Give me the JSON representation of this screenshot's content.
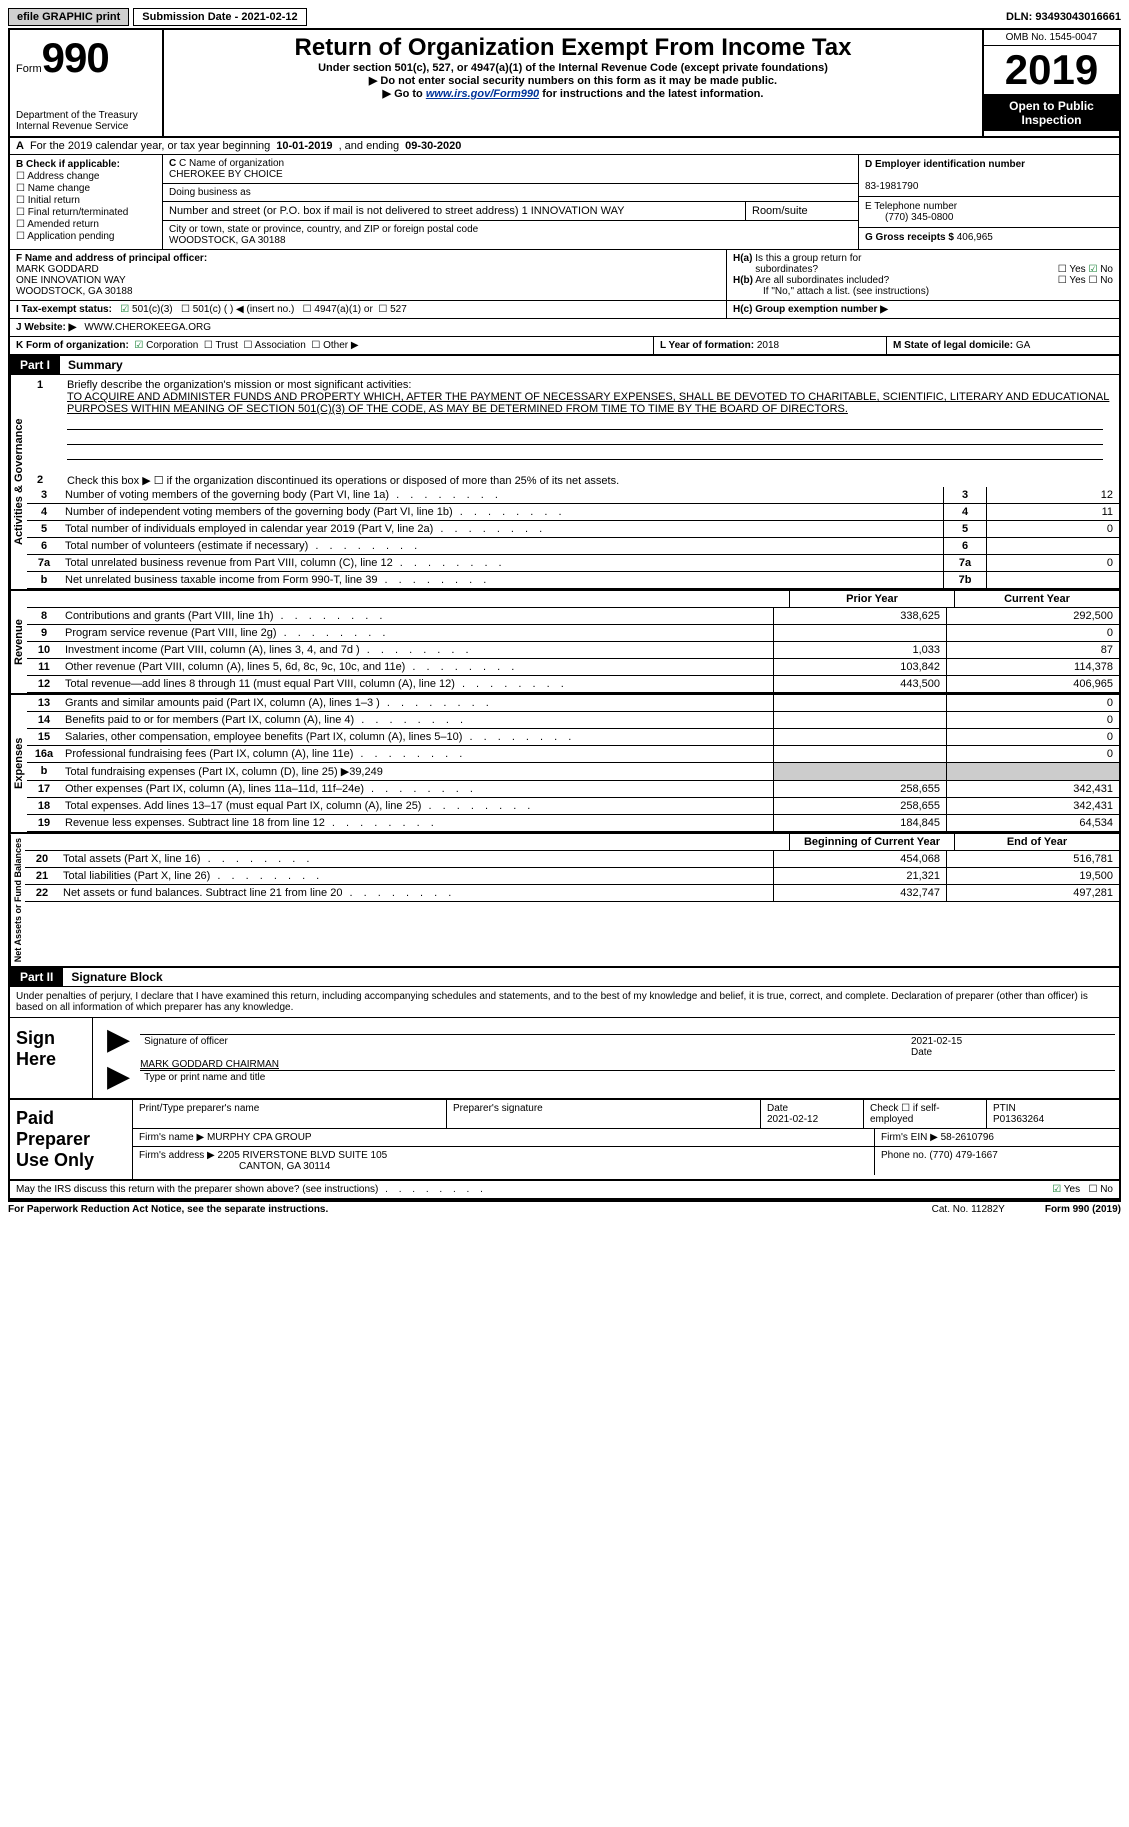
{
  "topbar": {
    "efile": "efile GRAPHIC print",
    "submission_label": "Submission Date - ",
    "submission_date": "2021-02-12",
    "dln_label": "DLN: ",
    "dln": "93493043016661"
  },
  "header": {
    "form_word": "Form",
    "form_no": "990",
    "dept": "Department of the Treasury",
    "irs": "Internal Revenue Service",
    "title": "Return of Organization Exempt From Income Tax",
    "subtitle": "Under section 501(c), 527, or 4947(a)(1) of the Internal Revenue Code (except private foundations)",
    "note1": "▶ Do not enter social security numbers on this form as it may be made public.",
    "note2_pre": "▶ Go to ",
    "note2_link": "www.irs.gov/Form990",
    "note2_post": " for instructions and the latest information.",
    "omb": "OMB No. 1545-0047",
    "year": "2019",
    "open": "Open to Public Inspection"
  },
  "lineA": {
    "a_label": "A",
    "text1": "For the 2019 calendar year, or tax year beginning ",
    "begin": "10-01-2019",
    "text2": " , and ending ",
    "end": "09-30-2020"
  },
  "colB": {
    "title": "B Check if applicable:",
    "opts": [
      "Address change",
      "Name change",
      "Initial return",
      "Final return/terminated",
      "Amended return",
      "Application pending"
    ]
  },
  "colC": {
    "name_lbl": "C Name of organization",
    "name": "CHEROKEE BY CHOICE",
    "dba_lbl": "Doing business as",
    "addr_lbl": "Number and street (or P.O. box if mail is not delivered to street address)",
    "room_lbl": "Room/suite",
    "addr": "1 INNOVATION WAY",
    "city_lbl": "City or town, state or province, country, and ZIP or foreign postal code",
    "city": "WOODSTOCK, GA  30188"
  },
  "colDE": {
    "d_lbl": "D Employer identification number",
    "ein": "83-1981790",
    "e_lbl": "E Telephone number",
    "phone": "(770) 345-0800",
    "g_lbl": "G Gross receipts $ ",
    "g_val": "406,965"
  },
  "rowF": {
    "f_lbl": "F Name and address of principal officer:",
    "name": "MARK GODDARD",
    "addr1": "ONE INNOVATION WAY",
    "addr2": "WOODSTOCK, GA  30188",
    "ha_lbl": "H(a)  Is this a group return for subordinates?",
    "ha_yes": "Yes",
    "ha_no": "No",
    "hb_lbl": "H(b)  Are all subordinates included?",
    "hb_note": "If \"No,\" attach a list. (see instructions)"
  },
  "rowI": {
    "i_lbl": "I   Tax-exempt status:",
    "o1": "501(c)(3)",
    "o2": "501(c) ( ) ◀ (insert no.)",
    "o3": "4947(a)(1) or",
    "o4": "527",
    "hc_lbl": "H(c)  Group exemption number ▶"
  },
  "rowJ": {
    "j_lbl": "J   Website: ▶",
    "site": "WWW.CHEROKEEGA.ORG"
  },
  "rowKLM": {
    "k_lbl": "K Form of organization:",
    "k1": "Corporation",
    "k2": "Trust",
    "k3": "Association",
    "k4": "Other ▶",
    "l_lbl": "L Year of formation: ",
    "l_val": "2018",
    "m_lbl": "M State of legal domicile: ",
    "m_val": "GA"
  },
  "part1": {
    "tag": "Part I",
    "title": "Summary",
    "side1": "Activities & Governance",
    "side2": "Revenue",
    "side3": "Expenses",
    "side4": "Net Assets or Fund Balances",
    "line1_lbl": "1",
    "line1_pre": "Briefly describe the organization's mission or most significant activities:",
    "mission": "TO ACQUIRE AND ADMINISTER FUNDS AND PROPERTY WHICH, AFTER THE PAYMENT OF NECESSARY EXPENSES, SHALL BE DEVOTED TO CHARITABLE, SCIENTIFIC, LITERARY AND EDUCATIONAL PURPOSES WITHIN MEANING OF SECTION 501(C)(3) OF THE CODE, AS MAY BE DETERMINED FROM TIME TO TIME BY THE BOARD OF DIRECTORS.",
    "line2": "Check this box ▶ ☐ if the organization discontinued its operations or disposed of more than 25% of its net assets.",
    "rows_gov": [
      {
        "n": "3",
        "d": "Number of voting members of the governing body (Part VI, line 1a)",
        "b": "3",
        "v": "12"
      },
      {
        "n": "4",
        "d": "Number of independent voting members of the governing body (Part VI, line 1b)",
        "b": "4",
        "v": "11"
      },
      {
        "n": "5",
        "d": "Total number of individuals employed in calendar year 2019 (Part V, line 2a)",
        "b": "5",
        "v": "0"
      },
      {
        "n": "6",
        "d": "Total number of volunteers (estimate if necessary)",
        "b": "6",
        "v": ""
      },
      {
        "n": "7a",
        "d": "Total unrelated business revenue from Part VIII, column (C), line 12",
        "b": "7a",
        "v": "0"
      },
      {
        "n": "b",
        "d": "Net unrelated business taxable income from Form 990-T, line 39",
        "b": "7b",
        "v": ""
      }
    ],
    "hdr_prior": "Prior Year",
    "hdr_curr": "Current Year",
    "rows_rev": [
      {
        "n": "8",
        "d": "Contributions and grants (Part VIII, line 1h)",
        "p": "338,625",
        "c": "292,500"
      },
      {
        "n": "9",
        "d": "Program service revenue (Part VIII, line 2g)",
        "p": "",
        "c": "0"
      },
      {
        "n": "10",
        "d": "Investment income (Part VIII, column (A), lines 3, 4, and 7d )",
        "p": "1,033",
        "c": "87"
      },
      {
        "n": "11",
        "d": "Other revenue (Part VIII, column (A), lines 5, 6d, 8c, 9c, 10c, and 11e)",
        "p": "103,842",
        "c": "114,378"
      },
      {
        "n": "12",
        "d": "Total revenue—add lines 8 through 11 (must equal Part VIII, column (A), line 12)",
        "p": "443,500",
        "c": "406,965"
      }
    ],
    "rows_exp": [
      {
        "n": "13",
        "d": "Grants and similar amounts paid (Part IX, column (A), lines 1–3 )",
        "p": "",
        "c": "0"
      },
      {
        "n": "14",
        "d": "Benefits paid to or for members (Part IX, column (A), line 4)",
        "p": "",
        "c": "0"
      },
      {
        "n": "15",
        "d": "Salaries, other compensation, employee benefits (Part IX, column (A), lines 5–10)",
        "p": "",
        "c": "0"
      },
      {
        "n": "16a",
        "d": "Professional fundraising fees (Part IX, column (A), line 11e)",
        "p": "",
        "c": "0"
      },
      {
        "n": "b",
        "d": "Total fundraising expenses (Part IX, column (D), line 25) ▶39,249",
        "p": null,
        "c": null
      },
      {
        "n": "17",
        "d": "Other expenses (Part IX, column (A), lines 11a–11d, 11f–24e)",
        "p": "258,655",
        "c": "342,431"
      },
      {
        "n": "18",
        "d": "Total expenses. Add lines 13–17 (must equal Part IX, column (A), line 25)",
        "p": "258,655",
        "c": "342,431"
      },
      {
        "n": "19",
        "d": "Revenue less expenses. Subtract line 18 from line 12",
        "p": "184,845",
        "c": "64,534"
      }
    ],
    "hdr_beg": "Beginning of Current Year",
    "hdr_end": "End of Year",
    "rows_net": [
      {
        "n": "20",
        "d": "Total assets (Part X, line 16)",
        "p": "454,068",
        "c": "516,781"
      },
      {
        "n": "21",
        "d": "Total liabilities (Part X, line 26)",
        "p": "21,321",
        "c": "19,500"
      },
      {
        "n": "22",
        "d": "Net assets or fund balances. Subtract line 21 from line 20",
        "p": "432,747",
        "c": "497,281"
      }
    ]
  },
  "part2": {
    "tag": "Part II",
    "title": "Signature Block",
    "decl": "Under penalties of perjury, I declare that I have examined this return, including accompanying schedules and statements, and to the best of my knowledge and belief, it is true, correct, and complete. Declaration of preparer (other than officer) is based on all information of which preparer has any knowledge."
  },
  "sign": {
    "lbl": "Sign Here",
    "sig_of": "Signature of officer",
    "date_lbl": "Date",
    "date": "2021-02-15",
    "name": "MARK GODDARD  CHAIRMAN",
    "name_lbl": "Type or print name and title"
  },
  "paid": {
    "lbl": "Paid Preparer Use Only",
    "h1": "Print/Type preparer's name",
    "h2": "Preparer's signature",
    "h3_lbl": "Date",
    "h3": "2021-02-12",
    "h4": "Check ☐ if self-employed",
    "h5_lbl": "PTIN",
    "h5": "P01363264",
    "firm_name_lbl": "Firm's name    ▶ ",
    "firm_name": "MURPHY CPA GROUP",
    "firm_ein_lbl": "Firm's EIN ▶ ",
    "firm_ein": "58-2610796",
    "firm_addr_lbl": "Firm's address ▶ ",
    "firm_addr1": "2205 RIVERSTONE BLVD SUITE 105",
    "firm_addr2": "CANTON, GA  30114",
    "phone_lbl": "Phone no. ",
    "phone": "(770) 479-1667"
  },
  "discuss": {
    "q": "May the IRS discuss this return with the preparer shown above? (see instructions)",
    "yes": "Yes",
    "no": "No"
  },
  "footer": {
    "left": "For Paperwork Reduction Act Notice, see the separate instructions.",
    "mid": "Cat. No. 11282Y",
    "right": "Form 990 (2019)"
  }
}
